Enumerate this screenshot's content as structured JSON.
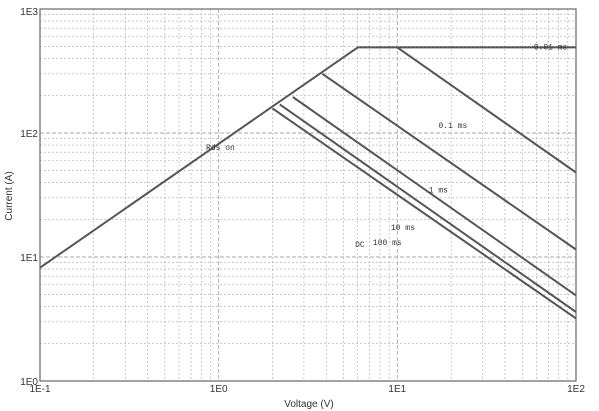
{
  "chart_data": {
    "type": "line",
    "title": "",
    "xlabel": "Voltage (V)",
    "ylabel": "Current (A)",
    "xscale": "log",
    "yscale": "log",
    "xlim": [
      0.1,
      100
    ],
    "ylim": [
      1,
      1000
    ],
    "grid": true,
    "legend": "none",
    "x_tick_labels": [
      "1E-1",
      "1E0",
      "1E1",
      "1E2"
    ],
    "y_tick_labels": [
      "1E0",
      "1E1",
      "1E2",
      "1E3"
    ],
    "colors": {
      "line": "#555555",
      "grid": "#aaaaaa",
      "frame": "#666666"
    },
    "series": [
      {
        "name": "Rds on",
        "x": [
          0.1,
          6
        ],
        "y": [
          8.2,
          490
        ]
      },
      {
        "name": "0.01 ms",
        "x": [
          6,
          100
        ],
        "y": [
          490,
          490
        ]
      },
      {
        "name": "0.1 ms",
        "x": [
          10,
          100
        ],
        "y": [
          490,
          48
        ]
      },
      {
        "name": "1 ms",
        "x": [
          3.8,
          100
        ],
        "y": [
          300,
          11.5
        ]
      },
      {
        "name": "10 ms",
        "x": [
          2.6,
          100
        ],
        "y": [
          195,
          4.9
        ]
      },
      {
        "name": "100 ms",
        "x": [
          2.2,
          100
        ],
        "y": [
          170,
          3.6
        ]
      },
      {
        "name": "DC",
        "x": [
          2,
          100
        ],
        "y": [
          158,
          3.2
        ]
      }
    ],
    "annotations": [
      {
        "text": "Rds on",
        "x": 0.85,
        "y": 73
      },
      {
        "text": "0.01 ms",
        "x": 58,
        "y": 470
      },
      {
        "text": "0.1 ms",
        "x": 17,
        "y": 110
      },
      {
        "text": "1 ms",
        "x": 15,
        "y": 33
      },
      {
        "text": "10 ms",
        "x": 9.2,
        "y": 16.5
      },
      {
        "text": "100 ms",
        "x": 7.3,
        "y": 12.5
      },
      {
        "text": "DC",
        "x": 5.8,
        "y": 12
      }
    ]
  }
}
